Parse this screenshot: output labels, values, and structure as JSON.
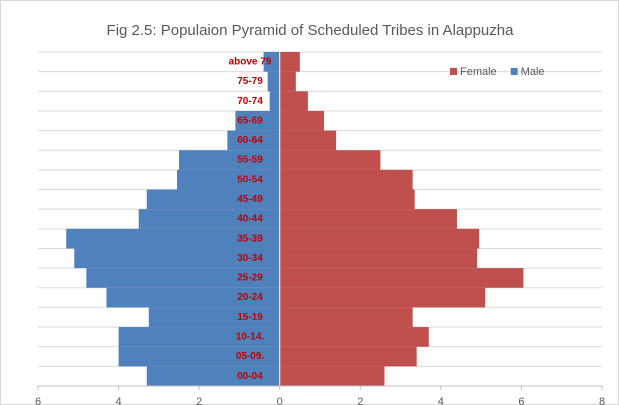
{
  "chart_data": {
    "type": "pyramid",
    "title": "Fig 2.5:  Populaion Pyramid of Scheduled Tribes in Alappuzha",
    "categories": [
      "00-04",
      "05-09.",
      "10-14.",
      "15-19",
      "20-24",
      "25-29",
      "30-34",
      "35-39",
      "40-44",
      "45-49",
      "50-54",
      "55-59",
      "60-64",
      "65-69",
      "70-74",
      "75-79",
      "above 79"
    ],
    "series": [
      {
        "name": "Female",
        "color": "#c0504d",
        "values": [
          2.6,
          3.4,
          3.7,
          3.3,
          5.1,
          6.05,
          4.9,
          4.95,
          4.4,
          3.35,
          3.3,
          2.5,
          1.4,
          1.1,
          0.7,
          0.4,
          0.5
        ]
      },
      {
        "name": "Male",
        "color": "#4f81bd",
        "values": [
          -3.3,
          -4.0,
          -4.0,
          -3.25,
          -4.3,
          -4.8,
          -5.1,
          -5.3,
          -3.5,
          -3.3,
          -2.55,
          -2.5,
          -1.3,
          -1.1,
          -0.25,
          -0.3,
          -0.4
        ]
      }
    ],
    "xlim": [
      -6,
      8
    ],
    "xticks": [
      {
        "value": -6,
        "label": "6"
      },
      {
        "value": -4,
        "label": "4"
      },
      {
        "value": -2,
        "label": "2"
      },
      0,
      2,
      4,
      6,
      8
    ],
    "legend": "top-right",
    "category_label_color": "#c00000"
  }
}
